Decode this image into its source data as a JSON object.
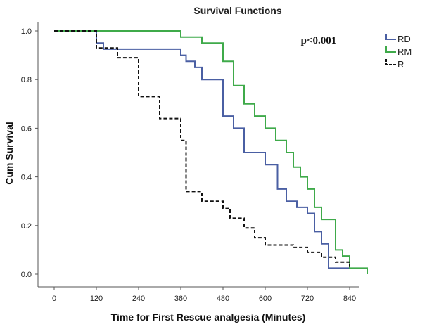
{
  "chart_data": {
    "type": "line",
    "step": true,
    "title": "Survival Functions",
    "xlabel": "Time for First Rescue analgesia (Minutes)",
    "ylabel": "Cum Survival",
    "annotation": "p<0.001",
    "xlim": [
      0,
      900
    ],
    "ylim": [
      0,
      1.0
    ],
    "xticks": [
      0,
      120,
      240,
      360,
      480,
      600,
      720,
      840
    ],
    "yticks": [
      0.0,
      0.2,
      0.4,
      0.6,
      0.8,
      1.0
    ],
    "ytick_labels": [
      "0.0",
      "0.2",
      "0.4",
      "0.6",
      "0.8",
      "1.0"
    ],
    "legend_position": "top-right",
    "grid": false,
    "series": [
      {
        "name": "RD",
        "color": "#4a5fa3",
        "dash": "solid",
        "x": [
          0,
          120,
          140,
          360,
          375,
          400,
          420,
          480,
          510,
          540,
          600,
          635,
          660,
          690,
          720,
          740,
          760,
          780,
          840
        ],
        "y": [
          1.0,
          0.95,
          0.925,
          0.9,
          0.875,
          0.85,
          0.8,
          0.65,
          0.6,
          0.5,
          0.45,
          0.35,
          0.3,
          0.275,
          0.25,
          0.175,
          0.125,
          0.025,
          0.025
        ]
      },
      {
        "name": "RM",
        "color": "#3faa4a",
        "dash": "solid",
        "x": [
          0,
          360,
          420,
          480,
          510,
          540,
          570,
          600,
          630,
          660,
          680,
          700,
          720,
          740,
          760,
          800,
          820,
          840,
          890
        ],
        "y": [
          1.0,
          0.975,
          0.95,
          0.875,
          0.775,
          0.7,
          0.65,
          0.6,
          0.55,
          0.5,
          0.44,
          0.4,
          0.35,
          0.275,
          0.225,
          0.1,
          0.075,
          0.025,
          0.0
        ]
      },
      {
        "name": "R",
        "color": "#111111",
        "dash": "dashed",
        "x": [
          0,
          120,
          180,
          240,
          300,
          360,
          375,
          420,
          470,
          480,
          500,
          540,
          570,
          600,
          680,
          720,
          760,
          800,
          840
        ],
        "y": [
          1.0,
          0.93,
          0.89,
          0.73,
          0.64,
          0.55,
          0.34,
          0.3,
          0.3,
          0.27,
          0.23,
          0.19,
          0.15,
          0.12,
          0.11,
          0.09,
          0.07,
          0.05,
          0.03
        ]
      }
    ]
  }
}
